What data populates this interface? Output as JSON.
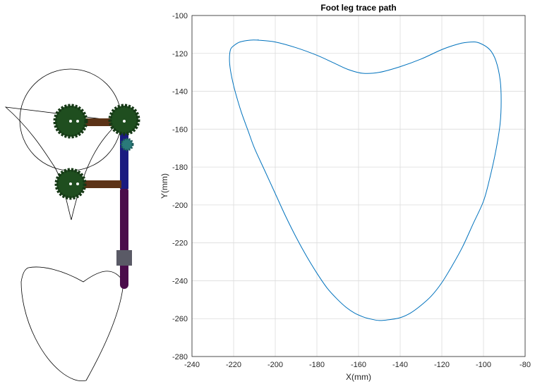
{
  "chart_data": {
    "type": "line",
    "title": "Foot leg trace path",
    "xlabel": "X(mm)",
    "ylabel": "Y(mm)",
    "xlim": [
      -240,
      -80
    ],
    "ylim": [
      -280,
      -100
    ],
    "xticks": [
      -240,
      -220,
      -200,
      -180,
      -160,
      -140,
      -120,
      -100,
      -80
    ],
    "yticks": [
      -280,
      -260,
      -240,
      -220,
      -200,
      -180,
      -160,
      -140,
      -120,
      -100
    ],
    "grid": true,
    "series": [
      {
        "color": "#0072bd",
        "closed": true,
        "x": [
          -208,
          -200,
          -190,
          -180,
          -172,
          -165,
          -158,
          -150,
          -140,
          -130,
          -120,
          -112,
          -106,
          -102,
          -97,
          -94,
          -92,
          -91.5,
          -92,
          -94,
          -97,
          -100,
          -105,
          -110,
          -115,
          -120,
          -125,
          -130,
          -135,
          -140,
          -145,
          -150,
          -155,
          -158,
          -162,
          -166,
          -170,
          -175,
          -180,
          -185,
          -190,
          -195,
          -200,
          -205,
          -210,
          -213,
          -216,
          -218,
          -220,
          -221.5,
          -222,
          -221.5,
          -220,
          -217,
          -212,
          -208
        ],
        "y": [
          -113,
          -114,
          -117,
          -121,
          -125,
          -128.5,
          -130.5,
          -130,
          -127,
          -123,
          -118,
          -115,
          -114,
          -114.5,
          -118,
          -124,
          -134,
          -145,
          -157,
          -171,
          -186,
          -198,
          -210,
          -222,
          -232,
          -241,
          -248,
          -253,
          -257,
          -259.5,
          -260.5,
          -261,
          -260,
          -259,
          -257,
          -254,
          -250,
          -244,
          -236,
          -227,
          -217,
          -206,
          -194,
          -182,
          -170,
          -161,
          -152,
          -145,
          -137,
          -129,
          -123,
          -118,
          -116,
          -114,
          -113,
          -113
        ]
      }
    ]
  },
  "mechanism": {
    "colors": {
      "gear": "#1f4e1f",
      "crank": "#5c3317",
      "upper_link": "#1a1a80",
      "lower_link": "#4b0d4b",
      "slider": "#5a5a66",
      "trace": "#000000"
    }
  }
}
